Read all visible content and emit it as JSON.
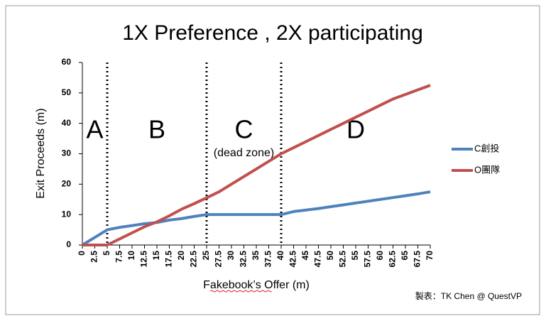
{
  "chart_data": {
    "type": "line",
    "title": "1X Preference , 2X participating",
    "ylabel": "Exit Proceeds (m)",
    "xlabel": "Fakebook’s Offer (m)",
    "credit": "製表：TK Chen @ QuestVP",
    "x": [
      0,
      2.5,
      5,
      7.5,
      10,
      12.5,
      15,
      17.5,
      20,
      22.5,
      25,
      27.5,
      30,
      32.5,
      35,
      37.5,
      40,
      42.5,
      45,
      47.5,
      50,
      52.5,
      55,
      57.5,
      60,
      62.5,
      65,
      67.5,
      70
    ],
    "series": [
      {
        "name": "C創投",
        "color": "#4f81bd",
        "values": [
          0,
          2.5,
          5,
          5.8,
          6.4,
          7,
          7.4,
          8.2,
          8.7,
          9.4,
          10,
          10,
          10,
          10,
          10,
          10,
          10,
          11,
          11.5,
          12,
          12.6,
          13.2,
          13.8,
          14.4,
          15,
          15.6,
          16.2,
          16.8,
          17.5
        ]
      },
      {
        "name": "O團隊",
        "color": "#c0504d",
        "values": [
          0,
          0,
          0,
          2,
          4,
          6,
          7.6,
          9.6,
          11.8,
          13.6,
          15.5,
          17.5,
          20,
          22.5,
          25,
          27.5,
          30,
          32,
          34,
          36,
          38,
          40,
          42,
          44,
          46,
          48,
          49.5,
          51,
          52.5
        ]
      }
    ],
    "dividers": [
      5,
      25,
      40
    ],
    "annotations": [
      "A",
      "B",
      "C",
      "D"
    ],
    "dead_zone": "(dead zone)",
    "xlim": [
      0,
      70
    ],
    "xticks": [
      0,
      2.5,
      5,
      7.5,
      10,
      12.5,
      15,
      17.5,
      20,
      22.5,
      25,
      27.5,
      30,
      32.5,
      35,
      37.5,
      40,
      42.5,
      45,
      47.5,
      50,
      52.5,
      55,
      57.5,
      60,
      62.5,
      65,
      67.5,
      70
    ],
    "ylim": [
      0,
      60
    ],
    "yticks": [
      0,
      10,
      20,
      30,
      40,
      50,
      60
    ],
    "grid": false,
    "legend": "right"
  }
}
